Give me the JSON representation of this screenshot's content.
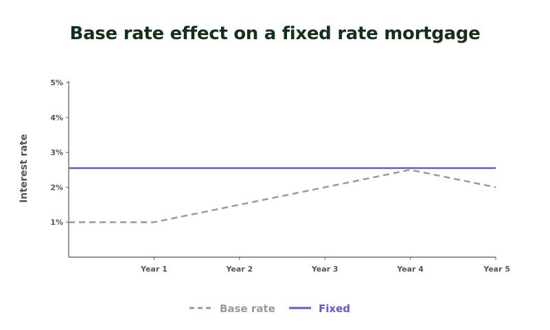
{
  "title": "Base rate effect on a fixed rate mortgage",
  "chart_data": {
    "type": "line",
    "title": "Base rate effect on a fixed rate mortgage",
    "xlabel": "",
    "ylabel": "Interest rate",
    "x_tick_labels": [
      "Year 1",
      "Year 2",
      "Year 3",
      "Year 4",
      "Year 5"
    ],
    "y_ticks": [
      1,
      2,
      3,
      4,
      5
    ],
    "y_tick_labels": [
      "1%",
      "2%",
      "3%",
      "4%",
      "5%"
    ],
    "xlim": [
      0,
      5
    ],
    "ylim": [
      0,
      5
    ],
    "grid": false,
    "legend_position": "bottom",
    "series": [
      {
        "name": "Base rate",
        "style": "dashed",
        "color": "#999999",
        "x": [
          0,
          1,
          2,
          3,
          4,
          5
        ],
        "y": [
          1.0,
          1.0,
          1.5,
          2.0,
          2.5,
          2.0
        ]
      },
      {
        "name": "Fixed",
        "style": "solid",
        "color": "#5b5bd6",
        "x": [
          0,
          5
        ],
        "y": [
          2.55,
          2.55
        ]
      }
    ]
  }
}
